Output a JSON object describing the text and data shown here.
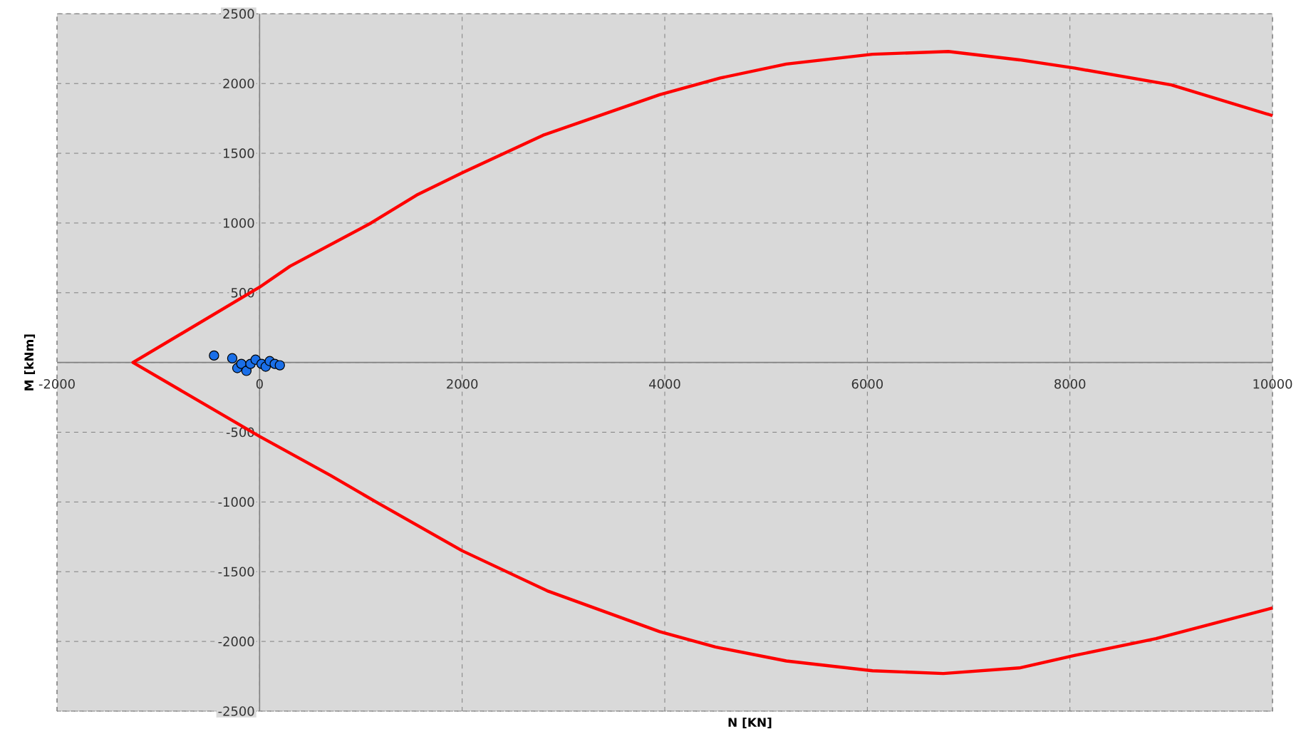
{
  "chart_data": {
    "type": "scatter",
    "xlabel": "N [KN]",
    "ylabel": "M [kNm]",
    "xlim": [
      -2000,
      10000
    ],
    "ylim": [
      -2500,
      2500
    ],
    "xticks": [
      -2000,
      0,
      2000,
      4000,
      6000,
      8000,
      10000
    ],
    "yticks": [
      -2500,
      -2000,
      -1500,
      -1000,
      -500,
      {
        "value": 0,
        "label": null
      },
      500,
      1000,
      1500,
      2000,
      2500
    ],
    "grid": true,
    "series": [
      {
        "type": "line",
        "color": "#ff0000",
        "marker": "none",
        "line_style": "solid",
        "x": [
          10000,
          9000,
          8050,
          7500,
          6800,
          6050,
          5200,
          4550,
          3950,
          2800,
          2000,
          1550,
          1100,
          300,
          0,
          -1250,
          0,
          700,
          1150,
          2000,
          2850,
          3950,
          4500,
          5200,
          6050,
          6750,
          7500,
          8050,
          8850,
          10000
        ],
        "values": [
          1770,
          1990,
          2110,
          2170,
          2230,
          2210,
          2140,
          2040,
          1920,
          1630,
          1360,
          1200,
          1000,
          690,
          540,
          0,
          -530,
          -810,
          -1000,
          -1350,
          -1640,
          -1930,
          -2040,
          -2140,
          -2210,
          -2230,
          -2190,
          -2100,
          -1980,
          -1760
        ]
      },
      {
        "color": "#1a6fe8",
        "marker": "circle",
        "x": [
          -450,
          -270,
          -220,
          -180,
          -130,
          -90,
          -40,
          20,
          60,
          100,
          150,
          200
        ],
        "values": [
          50,
          30,
          -40,
          -10,
          -60,
          -10,
          20,
          -10,
          -30,
          10,
          -10,
          -20
        ]
      }
    ]
  }
}
